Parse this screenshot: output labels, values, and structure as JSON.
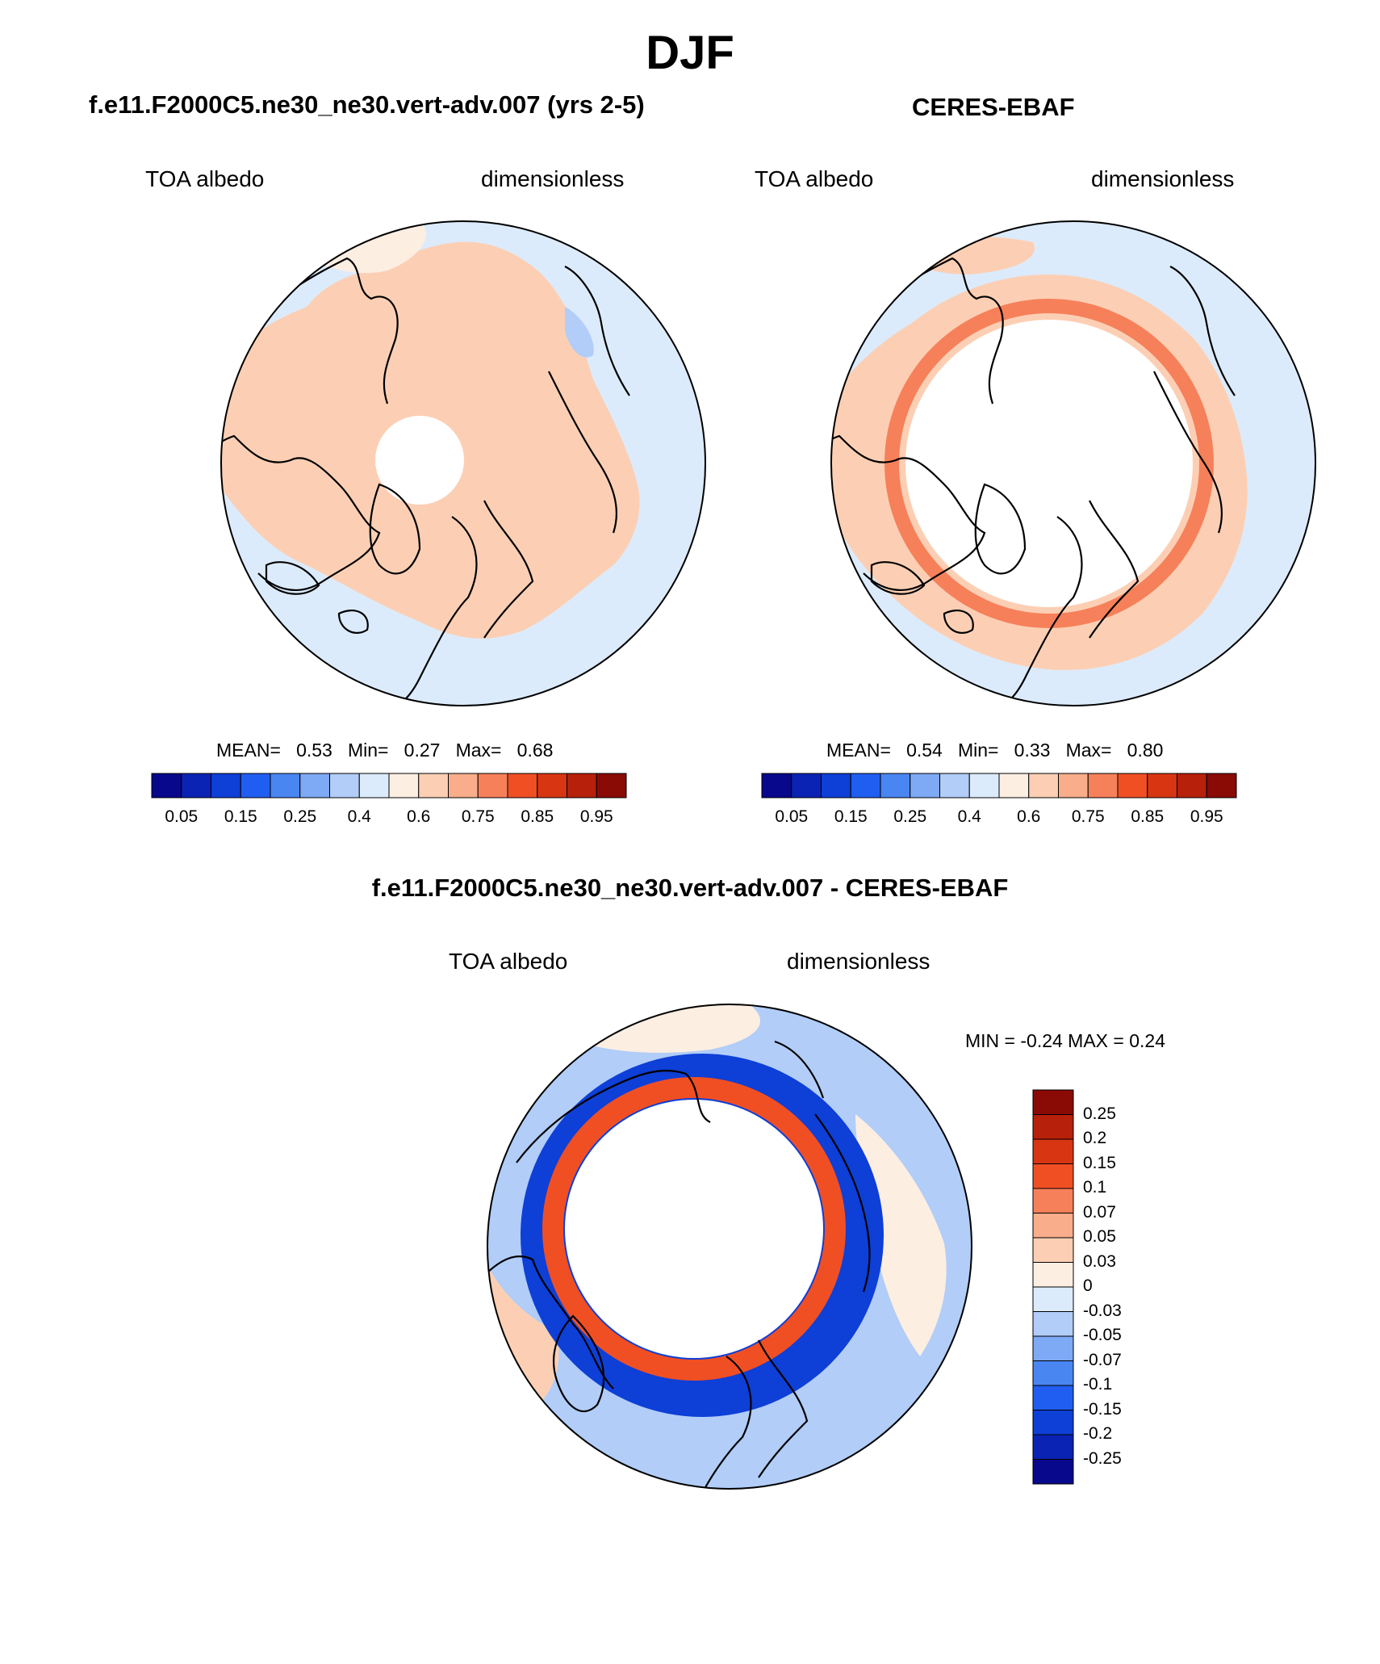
{
  "figure": {
    "title": "DJF"
  },
  "panels": [
    {
      "id": "model",
      "title": "f.e11.F2000C5.ne30_ne30.vert-adv.007 (yrs 2-5)",
      "left_label": "TOA albedo",
      "right_label": "dimensionless",
      "stats": {
        "mean_label": "MEAN=",
        "mean": "0.53",
        "min_label": "Min=",
        "min": "0.27",
        "max_label": "Max=",
        "max": "0.68"
      },
      "colorbar_ticks": [
        "0.05",
        "0.15",
        "0.25",
        "0.4",
        "0.6",
        "0.75",
        "0.85",
        "0.95"
      ]
    },
    {
      "id": "obs",
      "title": "CERES-EBAF",
      "left_label": "TOA albedo",
      "right_label": "dimensionless",
      "stats": {
        "mean_label": "MEAN=",
        "mean": "0.54",
        "min_label": "Min=",
        "min": "0.33",
        "max_label": "Max=",
        "max": "0.80"
      },
      "colorbar_ticks": [
        "0.05",
        "0.15",
        "0.25",
        "0.4",
        "0.6",
        "0.75",
        "0.85",
        "0.95"
      ]
    },
    {
      "id": "diff",
      "title": "f.e11.F2000C5.ne30_ne30.vert-adv.007 - CERES-EBAF",
      "left_label": "TOA albedo",
      "right_label": "dimensionless",
      "minmax": "MIN =  -0.24 MAX =   0.24",
      "colorbar_ticks": [
        "0.25",
        "0.2",
        "0.15",
        "0.1",
        "0.07",
        "0.05",
        "0.03",
        "0",
        "-0.03",
        "-0.05",
        "-0.07",
        "-0.1",
        "-0.15",
        "-0.2",
        "-0.25"
      ]
    }
  ],
  "colors": {
    "abs_scale": [
      "#08088c",
      "#0a23b4",
      "#0e3fd6",
      "#1f5ef0",
      "#4a86f2",
      "#7ea9f5",
      "#b1cdf8",
      "#dcebfb",
      "#fdeee2",
      "#fccfb4",
      "#f9ad8a",
      "#f6805a",
      "#f04f24",
      "#d83512",
      "#b7200a",
      "#8a0a06"
    ],
    "diff_scale": [
      "#8a0a06",
      "#b7200a",
      "#d83512",
      "#f04f24",
      "#f6805a",
      "#f9ad8a",
      "#fccfb4",
      "#fdeee2",
      "#dcebfb",
      "#b1cdf8",
      "#7ea9f5",
      "#4a86f2",
      "#1f5ef0",
      "#0e3fd6",
      "#0a23b4",
      "#08088c"
    ]
  }
}
